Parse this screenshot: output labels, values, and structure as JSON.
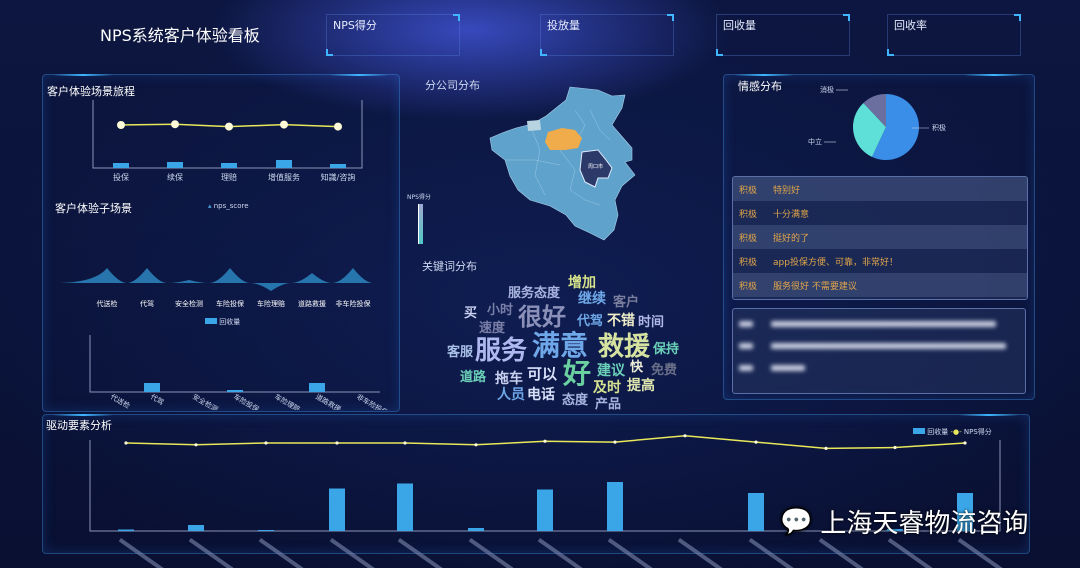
{
  "header": {
    "title": "NPS系统客户体验看板",
    "kpis": [
      {
        "label": "NPS得分"
      },
      {
        "label": "投放量"
      },
      {
        "label": "回收量"
      },
      {
        "label": "回收率"
      }
    ]
  },
  "journey": {
    "title": "客户体验场景旅程",
    "categories": [
      "投保",
      "续保",
      "理赔",
      "增值服务",
      "知識/咨詢"
    ],
    "line": [
      8.3,
      8.4,
      8.1,
      8.35,
      8.1
    ],
    "bars": [
      5,
      6,
      5,
      8,
      4
    ],
    "colors": {
      "line": "#e8e85a",
      "bar": "#3aa6e8"
    }
  },
  "subscene": {
    "title": "客户体验子场景",
    "legend": "nps_score",
    "categories": [
      "代送检",
      "代驾",
      "安全检测",
      "车险投保",
      "车险理赔",
      "道路救援",
      "非车险投保"
    ],
    "nps_score": [
      15,
      15,
      3,
      15,
      -8,
      10,
      15
    ],
    "bar_legend": "回收量",
    "bars": [
      0,
      9,
      0,
      2,
      0,
      9,
      0
    ]
  },
  "map": {
    "title": "分公司分布",
    "visual_map_label": "NPS得分",
    "highlight_label": "周口市",
    "colors": {
      "base": "#5fa3cc",
      "highlight": "#f0ac4a",
      "selected": "#2c3a6a"
    }
  },
  "wordcloud": {
    "title": "关键词分布",
    "words": [
      {
        "text": "增加",
        "color": "#d6e28a"
      },
      {
        "text": "服务态度",
        "color": "#a9b3e0"
      },
      {
        "text": "继续",
        "color": "#6fa8e8"
      },
      {
        "text": "客户",
        "color": "#7a7f9e"
      },
      {
        "text": "买",
        "color": "#c9d0f0"
      },
      {
        "text": "小时",
        "color": "#7a7fa8"
      },
      {
        "text": "很好",
        "color": "#8a90b8"
      },
      {
        "text": "代驾",
        "color": "#6fa8e8"
      },
      {
        "text": "不错",
        "color": "#eeeec8"
      },
      {
        "text": "时间",
        "color": "#b0b8e8"
      },
      {
        "text": "速度",
        "color": "#7a7fa8"
      },
      {
        "text": "客服",
        "color": "#a9c0e8"
      },
      {
        "text": "服务",
        "color": "#b0b8f0"
      },
      {
        "text": "满意",
        "color": "#6fa8e8"
      },
      {
        "text": "救援",
        "color": "#d6e2a0"
      },
      {
        "text": "保持",
        "color": "#6ad0b8"
      },
      {
        "text": "道路",
        "color": "#6ad0b8"
      },
      {
        "text": "拖车",
        "color": "#c9d0f0"
      },
      {
        "text": "可以",
        "color": "#d8e0fa"
      },
      {
        "text": "好",
        "color": "#6ad0a0"
      },
      {
        "text": "建议",
        "color": "#6ad0b8"
      },
      {
        "text": "快",
        "color": "#eeeed8"
      },
      {
        "text": "免费",
        "color": "#6a6f88"
      },
      {
        "text": "及时",
        "color": "#d6e290"
      },
      {
        "text": "提高",
        "color": "#e0e8b0"
      },
      {
        "text": "人员",
        "color": "#6fa8e8"
      },
      {
        "text": "电话",
        "color": "#d8e0fa"
      },
      {
        "text": "态度",
        "color": "#a9b3e0"
      },
      {
        "text": "产品",
        "color": "#a9b3e0"
      }
    ]
  },
  "sentiment": {
    "title": "情感分布",
    "slices": [
      {
        "name": "积极",
        "value": 57,
        "color": "#3a8ee8"
      },
      {
        "name": "中立",
        "value": 31,
        "color": "#5ee0d8"
      },
      {
        "name": "消极",
        "value": 12,
        "color": "#6a6fa0"
      }
    ],
    "comments": [
      {
        "tag": "积极",
        "text": "特别好"
      },
      {
        "tag": "积极",
        "text": "十分满意"
      },
      {
        "tag": "积极",
        "text": "挺好的了"
      },
      {
        "tag": "积极",
        "text": "app投保方便、可靠，非常好！"
      },
      {
        "tag": "积极",
        "text": "服务很好 不需要建议"
      }
    ]
  },
  "drivers": {
    "title": "驱动要素分析",
    "legend": {
      "bar": "回收量",
      "line": "NPS得分"
    },
    "bars": [
      0.3,
      1.2,
      0.2,
      8.5,
      9.5,
      0.6,
      8.3,
      9.8,
      0,
      7.6,
      0,
      0.4,
      7.6
    ],
    "line": [
      8.6,
      8.5,
      8.6,
      8.6,
      8.6,
      8.5,
      8.7,
      8.65,
      9.0,
      8.65,
      8.3,
      8.35,
      8.6
    ]
  },
  "watermark": {
    "text": "上海天睿物流咨询"
  }
}
